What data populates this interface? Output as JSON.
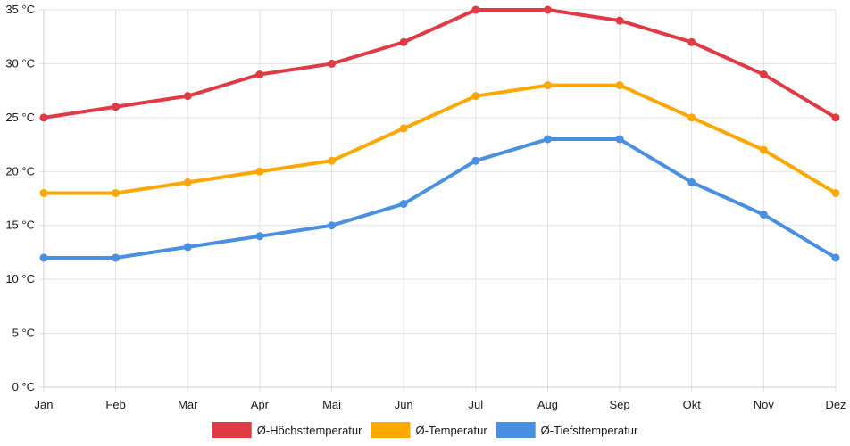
{
  "chart_data": {
    "type": "line",
    "categories": [
      "Jan",
      "Feb",
      "Mär",
      "Apr",
      "Mai",
      "Jun",
      "Jul",
      "Aug",
      "Sep",
      "Okt",
      "Nov",
      "Dez"
    ],
    "ylim": [
      0,
      35
    ],
    "yticks": [
      0,
      5,
      10,
      15,
      20,
      25,
      30,
      35
    ],
    "y_tick_suffix": " °C",
    "grid": true,
    "legend_position": "bottom",
    "series": [
      {
        "name": "Ø-Höchsttemperatur",
        "color": "#e03a45",
        "values": [
          25,
          26,
          27,
          29,
          30,
          32,
          35,
          35,
          34,
          32,
          29,
          25
        ]
      },
      {
        "name": "Ø-Temperatur",
        "color": "#fca702",
        "values": [
          18,
          18,
          19,
          20,
          21,
          24,
          27,
          28,
          28,
          25,
          22,
          18
        ]
      },
      {
        "name": "Ø-Tiefsttemperatur",
        "color": "#4a90e2",
        "values": [
          12,
          12,
          13,
          14,
          15,
          17,
          21,
          23,
          23,
          19,
          16,
          12
        ]
      }
    ]
  }
}
